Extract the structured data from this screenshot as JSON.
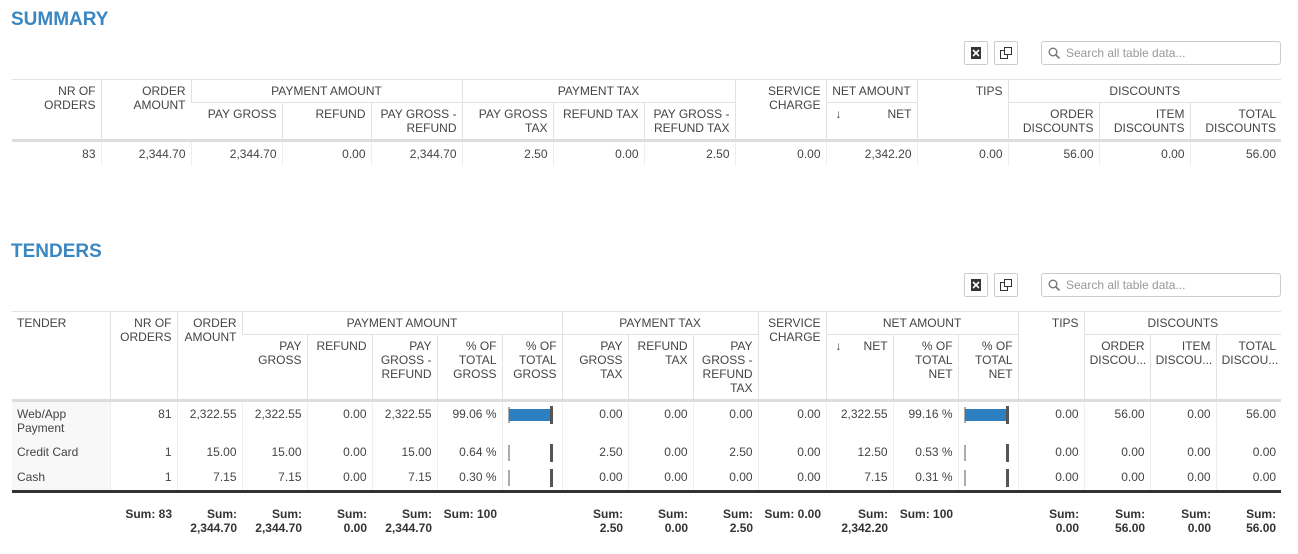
{
  "summary": {
    "title": "SUMMARY",
    "search_placeholder": "Search all table data...",
    "sort_indicator": "↓",
    "groups": {
      "payment_amount": "PAYMENT AMOUNT",
      "payment_tax": "PAYMENT TAX",
      "net_amount": "NET AMOUNT",
      "discounts": "DISCOUNTS"
    },
    "columns": [
      "NR OF ORDERS",
      "ORDER AMOUNT",
      "PAY GROSS",
      "REFUND",
      "PAY GROSS - REFUND",
      "PAY GROSS TAX",
      "REFUND TAX",
      "PAY GROSS - REFUND TAX",
      "SERVICE CHARGE",
      "NET",
      "TIPS",
      "ORDER DISCOUNTS",
      "ITEM DISCOUNTS",
      "TOTAL DISCOUNTS"
    ],
    "row": [
      "83",
      "2,344.70",
      "2,344.70",
      "0.00",
      "2,344.70",
      "2.50",
      "0.00",
      "2.50",
      "0.00",
      "2,342.20",
      "0.00",
      "56.00",
      "0.00",
      "56.00"
    ]
  },
  "tenders": {
    "title": "TENDERS",
    "search_placeholder": "Search all table data...",
    "sort_indicator": "↓",
    "groups": {
      "payment_amount": "PAYMENT AMOUNT",
      "payment_tax": "PAYMENT TAX",
      "net_amount": "NET AMOUNT",
      "discounts": "DISCOUNTS"
    },
    "columns": [
      "TENDER",
      "NR OF ORDERS",
      "ORDER AMOUNT",
      "PAY GROSS",
      "REFUND",
      "PAY GROSS - REFUND",
      "% OF TOTAL GROSS",
      "% OF TOTAL GROSS",
      "PAY GROSS TAX",
      "REFUND TAX",
      "PAY GROSS - REFUND TAX",
      "SERVICE CHARGE",
      "NET",
      "% OF TOTAL NET",
      "% OF TOTAL NET",
      "TIPS",
      "ORDER DISCOU...",
      "ITEM DISCOU...",
      "TOTAL DISCOU..."
    ],
    "rows": [
      [
        "Web/App Payment",
        "81",
        "2,322.55",
        "2,322.55",
        "0.00",
        "2,322.55",
        {
          "value": 99.06,
          "label": "99.06 %"
        },
        "0.00",
        "0.00",
        "0.00",
        "0.00",
        "2,322.55",
        {
          "value": 99.16,
          "label": "99.16 %"
        },
        "0.00",
        "56.00",
        "0.00",
        "56.00"
      ],
      [
        "Credit Card",
        "1",
        "15.00",
        "15.00",
        "0.00",
        "15.00",
        {
          "value": 0.64,
          "label": "0.64 %"
        },
        "2.50",
        "0.00",
        "2.50",
        "0.00",
        "12.50",
        {
          "value": 0.53,
          "label": "0.53 %"
        },
        "0.00",
        "0.00",
        "0.00",
        "0.00"
      ],
      [
        "Cash",
        "1",
        "7.15",
        "7.15",
        "0.00",
        "7.15",
        {
          "value": 0.3,
          "label": "0.30 %"
        },
        "0.00",
        "0.00",
        "0.00",
        "0.00",
        "7.15",
        {
          "value": 0.31,
          "label": "0.31 %"
        },
        "0.00",
        "0.00",
        "0.00",
        "0.00"
      ]
    ],
    "sums": [
      null,
      "Sum: 83",
      "Sum: 2,344.70",
      "Sum: 2,344.70",
      "Sum: 0.00",
      "Sum: 2,344.70",
      "Sum: 100",
      null,
      "Sum: 2.50",
      "Sum: 0.00",
      "Sum: 2.50",
      "Sum: 0.00",
      "Sum: 2,342.20",
      "Sum: 100",
      null,
      "Sum: 0.00",
      "Sum: 56.00",
      "Sum: 0.00",
      "Sum: 56.00"
    ]
  }
}
